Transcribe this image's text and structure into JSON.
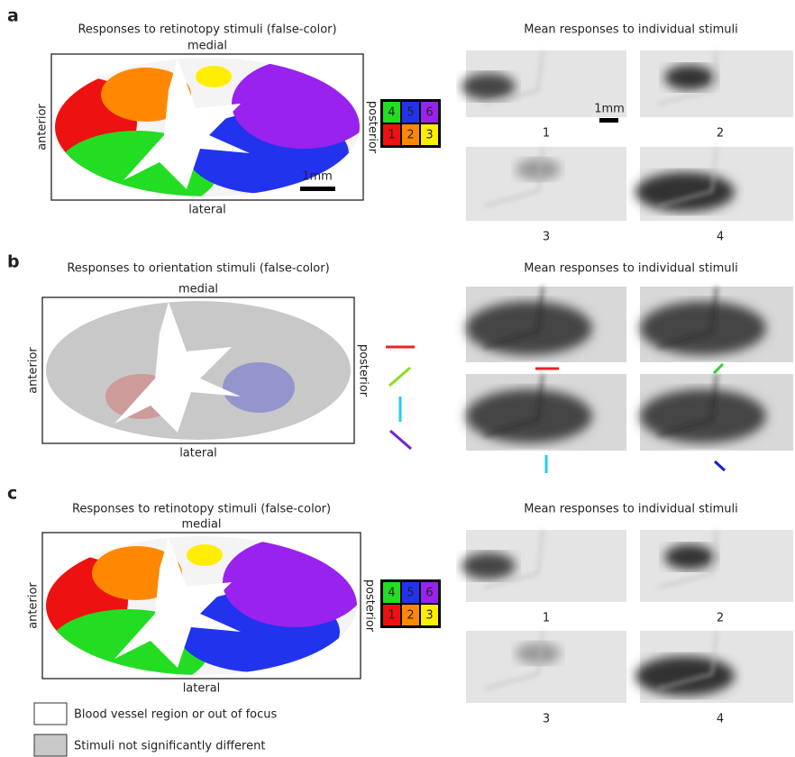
{
  "panels": [
    {
      "letter": "a",
      "map": {
        "title": "Responses to retinotopy stimuli (false-color)",
        "top": "medial",
        "bottom": "lateral",
        "left": "anterior",
        "right": "posterior",
        "scale": "1mm"
      },
      "key": [
        "4",
        "5",
        "6",
        "1",
        "2",
        "3"
      ],
      "stimuli": {
        "title": "Mean responses to individual stimuli",
        "scale": "1mm",
        "labels": [
          "1",
          "2",
          "3",
          "4"
        ]
      }
    },
    {
      "letter": "b",
      "map": {
        "title": "Responses to orientation stimuli (false-color)",
        "top": "medial",
        "bottom": "lateral",
        "left": "anterior",
        "right": "posterior"
      },
      "stimuli": {
        "title": "Mean responses to individual stimuli"
      }
    },
    {
      "letter": "c",
      "map": {
        "title": "Responses to retinotopy stimuli (false-color)",
        "top": "medial",
        "bottom": "lateral",
        "left": "anterior",
        "right": "posterior"
      },
      "key": [
        "4",
        "5",
        "6",
        "1",
        "2",
        "3"
      ],
      "stimuli": {
        "title": "Mean responses to individual stimuli",
        "labels": [
          "1",
          "2",
          "3",
          "4"
        ]
      }
    }
  ],
  "legend": [
    "Blood vessel region or out of focus",
    "Stimuli not significantly different"
  ]
}
